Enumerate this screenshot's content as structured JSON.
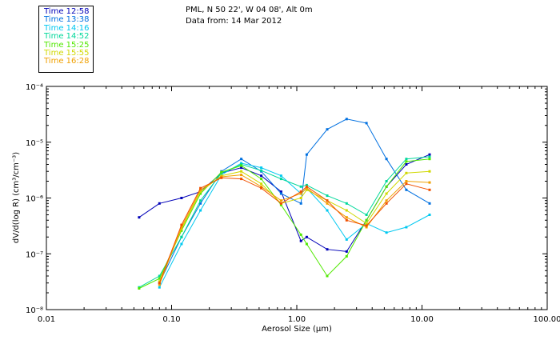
{
  "header": {
    "title": "PML, N 50 22', W 04 08', Alt 0m",
    "subtitle": "Data from: 14 Mar 2012"
  },
  "chart_data": {
    "type": "line",
    "xscale": "log",
    "yscale": "log",
    "xlim": [
      0.01,
      100.0
    ],
    "ylim": [
      1e-08,
      0.0001
    ],
    "xlabel": "Aerosol Size (µm)",
    "ylabel": "dV/d(log R) (cm³/cm⁻³)",
    "x_tick_labels": [
      "0.01",
      "0.10",
      "1.00",
      "10.00",
      "100.00"
    ],
    "y_tick_labels": [
      "10⁻⁸",
      "10⁻⁷",
      "10⁻⁶",
      "10⁻⁵",
      "10⁻⁴"
    ],
    "x": [
      0.055,
      0.08,
      0.12,
      0.17,
      0.25,
      0.36,
      0.52,
      0.75,
      1.08,
      1.2,
      1.75,
      2.5,
      3.6,
      5.2,
      7.5,
      11.5
    ],
    "series": [
      {
        "name": "Time 12:58",
        "color": "#0000b8",
        "values": [
          4.5e-07,
          8e-07,
          1e-06,
          1.3e-06,
          2.8e-06,
          3.5e-06,
          2.5e-06,
          1.3e-06,
          1.7e-07,
          2e-07,
          1.2e-07,
          1.1e-07,
          4e-07,
          1.6e-06,
          4e-06,
          6e-06
        ]
      },
      {
        "name": "Time 13:38",
        "color": "#0070e0",
        "values": [
          null,
          3e-08,
          2e-07,
          8e-07,
          3e-06,
          5e-06,
          3e-06,
          1.2e-06,
          8e-07,
          6e-06,
          1.7e-05,
          2.6e-05,
          2.2e-05,
          5e-06,
          1.4e-06,
          8e-07
        ]
      },
      {
        "name": "Time 14:16",
        "color": "#00c8f0",
        "values": [
          null,
          2.5e-08,
          1.5e-07,
          6e-07,
          2.6e-06,
          4.2e-06,
          3.5e-06,
          2.5e-06,
          1.2e-06,
          1.5e-06,
          6e-07,
          1.8e-07,
          3.5e-07,
          2.4e-07,
          3e-07,
          5e-07
        ]
      },
      {
        "name": "Time 14:52",
        "color": "#00d89a",
        "values": [
          2.5e-08,
          4e-08,
          2e-07,
          9e-07,
          2.8e-06,
          4e-06,
          3.1e-06,
          2.2e-06,
          1.6e-06,
          1.7e-06,
          1.1e-06,
          8e-07,
          5e-07,
          2e-06,
          5e-06,
          5.5e-06
        ]
      },
      {
        "name": "Time 15:25",
        "color": "#50e800",
        "values": [
          2.4e-08,
          3.6e-08,
          2.6e-07,
          1.2e-06,
          2.9e-06,
          3.8e-06,
          2.2e-06,
          7.5e-07,
          2.2e-07,
          1.5e-07,
          4e-08,
          9e-08,
          4e-07,
          1.6e-06,
          4.5e-06,
          5e-06
        ]
      },
      {
        "name": "Time 15:55",
        "color": "#d0d800",
        "values": [
          null,
          3.2e-08,
          2.8e-07,
          1.3e-06,
          2.5e-06,
          3e-06,
          1.8e-06,
          8e-07,
          1e-06,
          1.4e-06,
          9e-07,
          6e-07,
          3.5e-07,
          1.2e-06,
          2.8e-06,
          3e-06
        ]
      },
      {
        "name": "Time 16:28",
        "color": "#f0a000",
        "values": [
          null,
          2.8e-08,
          3e-07,
          1.4e-06,
          2.4e-06,
          2.6e-06,
          1.6e-06,
          9e-07,
          1.2e-06,
          1.5e-06,
          8e-07,
          4.5e-07,
          3e-07,
          9e-07,
          2e-06,
          1.9e-06
        ]
      },
      {
        "name": "",
        "color": "#f05000",
        "values": [
          null,
          3e-08,
          3.3e-07,
          1.5e-06,
          2.3e-06,
          2.2e-06,
          1.5e-06,
          8e-07,
          1.3e-06,
          1.6e-06,
          9e-07,
          4e-07,
          3.2e-07,
          8e-07,
          1.8e-06,
          1.4e-06
        ]
      }
    ]
  }
}
